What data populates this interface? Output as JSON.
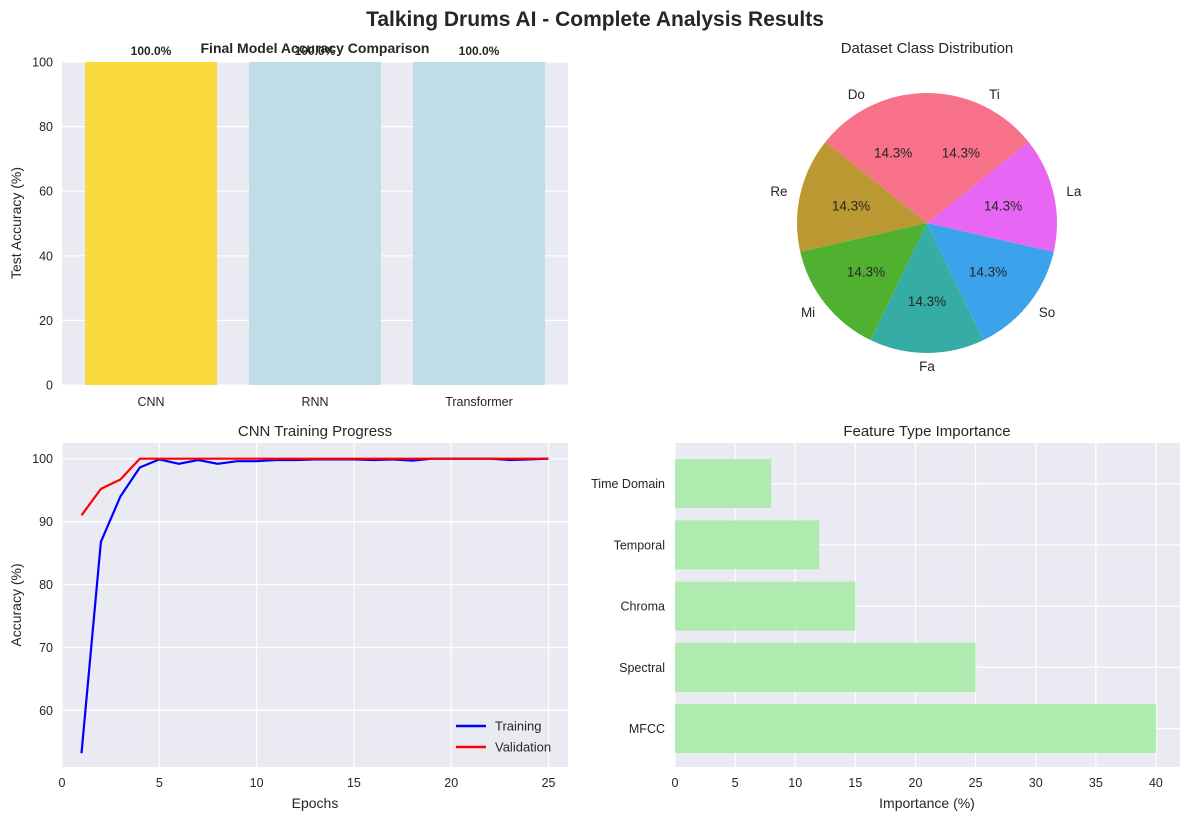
{
  "figure": {
    "suptitle": "Talking Drums AI - Complete Analysis Results"
  },
  "chart_data": [
    {
      "type": "bar",
      "title": "Final Model Accuracy Comparison",
      "xlabel": "",
      "ylabel": "Test Accuracy (%)",
      "categories": [
        "CNN",
        "RNN",
        "Transformer"
      ],
      "values": [
        100.0,
        100.0,
        100.0
      ],
      "data_labels": [
        "100.0%",
        "100.0%",
        "100.0%"
      ],
      "colors": [
        "#f9d72f",
        "#badbe6",
        "#badbe6"
      ],
      "ylim": [
        0,
        100
      ],
      "yticks": [
        0,
        20,
        40,
        60,
        80,
        100
      ],
      "grid": true
    },
    {
      "type": "pie",
      "title": "Dataset Class Distribution",
      "labels": [
        "Do",
        "Re",
        "Mi",
        "Fa",
        "So",
        "La",
        "Ti"
      ],
      "values": [
        14.3,
        14.3,
        14.3,
        14.3,
        14.3,
        14.3,
        14.3
      ],
      "pct_labels": [
        "14.3%",
        "14.3%",
        "14.3%",
        "14.3%",
        "14.3%",
        "14.3%",
        "14.3%"
      ],
      "colors": [
        "#f77189",
        "#bb9832",
        "#50b131",
        "#36ada4",
        "#3ba3ec",
        "#e866f4",
        "#f77189"
      ]
    },
    {
      "type": "line",
      "title": "CNN Training Progress",
      "xlabel": "Epochs",
      "ylabel": "Accuracy (%)",
      "x": [
        1,
        2,
        3,
        4,
        5,
        6,
        7,
        8,
        9,
        10,
        11,
        12,
        13,
        14,
        15,
        16,
        17,
        18,
        19,
        20,
        21,
        22,
        23,
        24,
        25
      ],
      "series": [
        {
          "name": "Training",
          "color": "#0000ff",
          "values": [
            53.2,
            86.8,
            94.0,
            98.6,
            99.9,
            99.2,
            99.8,
            99.2,
            99.6,
            99.6,
            99.8,
            99.8,
            99.9,
            99.9,
            99.9,
            99.8,
            99.9,
            99.7,
            100.0,
            100.0,
            100.0,
            100.0,
            99.8,
            99.9,
            100.0
          ]
        },
        {
          "name": "Validation",
          "color": "#ff0000",
          "values": [
            91.0,
            95.2,
            96.7,
            100.0,
            100.0,
            100.0,
            100.0,
            100.0,
            100.0,
            100.0,
            100.0,
            100.0,
            100.0,
            100.0,
            100.0,
            100.0,
            100.0,
            100.0,
            100.0,
            100.0,
            100.0,
            100.0,
            100.0,
            100.0,
            100.0
          ]
        }
      ],
      "xlim": [
        0,
        26
      ],
      "ylim": [
        51,
        102.5
      ],
      "xticks": [
        0,
        5,
        10,
        15,
        20,
        25
      ],
      "yticks": [
        60,
        70,
        80,
        90,
        100
      ],
      "legend": "lower-right",
      "grid": true
    },
    {
      "type": "bar",
      "orientation": "horizontal",
      "title": "Feature Type Importance",
      "xlabel": "Importance (%)",
      "ylabel": "",
      "categories": [
        "MFCC",
        "Spectral",
        "Chroma",
        "Temporal",
        "Time Domain"
      ],
      "values": [
        40,
        25,
        15,
        12,
        8
      ],
      "color": "#a9eaa9",
      "xlim": [
        0,
        42
      ],
      "xticks": [
        0,
        5,
        10,
        15,
        20,
        25,
        30,
        35,
        40
      ],
      "grid": true
    }
  ]
}
